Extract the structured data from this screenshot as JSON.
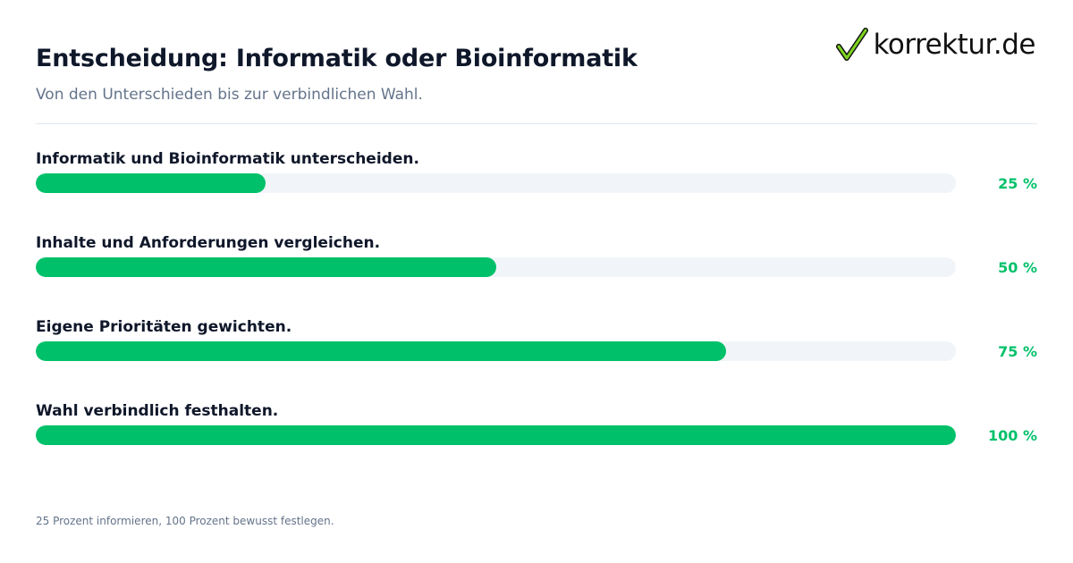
{
  "header": {
    "title": "Entscheidung: Informatik oder Bioinformatik",
    "subtitle": "Von den Unterschieden bis zur verbindlichen Wahl."
  },
  "brand": {
    "name": "korrektur.de",
    "icon": "checkmark-icon",
    "color": "#00c16a"
  },
  "chart_data": {
    "type": "bar",
    "orientation": "horizontal",
    "categories": [
      "Informatik und Bioinformatik unterscheiden.",
      "Inhalte und Anforderungen vergleichen.",
      "Eigene Prioritäten gewichten.",
      "Wahl verbindlich festhalten."
    ],
    "values": [
      25,
      50,
      75,
      100
    ],
    "value_labels": [
      "25 %",
      "50 %",
      "75 %",
      "100 %"
    ],
    "xlim": [
      0,
      100
    ],
    "bar_color": "#00c16a",
    "track_color": "#f1f5f9"
  },
  "footer": {
    "note": "25 Prozent informieren, 100 Prozent bewusst festlegen."
  }
}
